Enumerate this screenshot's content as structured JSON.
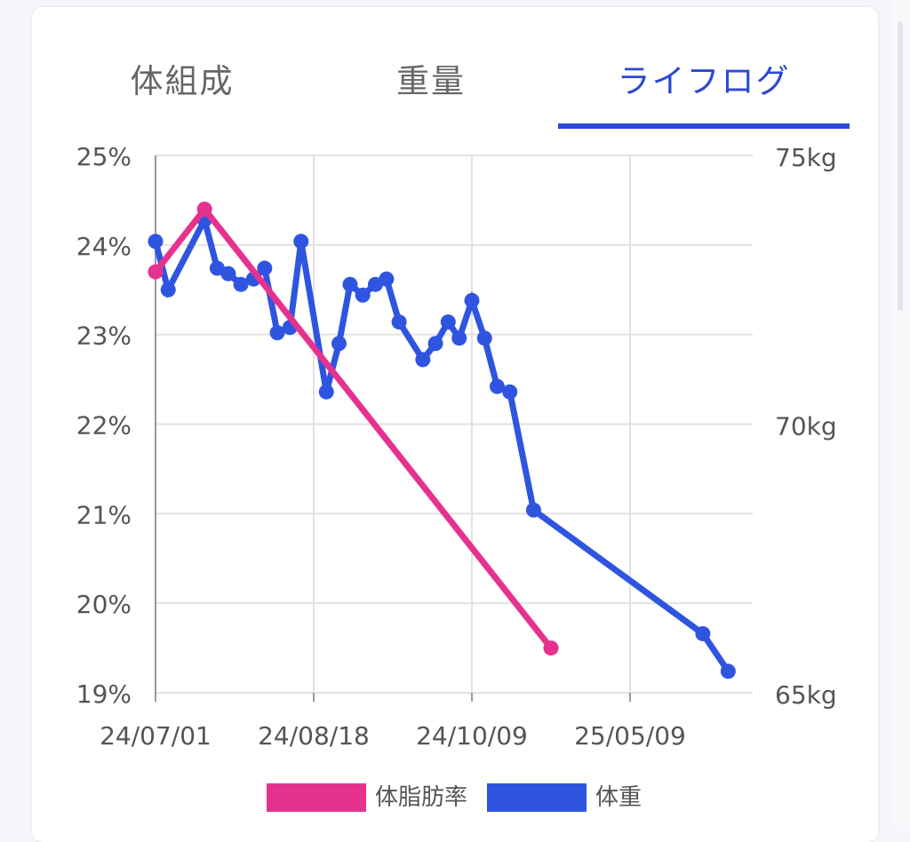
{
  "tabs": [
    {
      "label": "体組成",
      "active": false
    },
    {
      "label": "重量",
      "active": false
    },
    {
      "label": "ライフログ",
      "active": true
    }
  ],
  "colors": {
    "accent": "#2b48d6",
    "body_fat": "#e6328f",
    "weight": "#2f55e0",
    "grid": "#e2e2e2",
    "tab_text": "#666666"
  },
  "chart_data": {
    "type": "line",
    "x_ticks": [
      "24/07/01",
      "24/08/18",
      "24/10/09",
      "25/05/09"
    ],
    "y_left": {
      "ticks": [
        "25%",
        "24%",
        "23%",
        "22%",
        "21%",
        "20%",
        "19%"
      ],
      "range": [
        19,
        25
      ],
      "unit": "%"
    },
    "y_right": {
      "ticks": [
        "75kg",
        "70kg",
        "65kg"
      ],
      "range": [
        65,
        75
      ],
      "unit": "kg"
    },
    "grid": true,
    "legend_position": "bottom",
    "series": [
      {
        "name": "体脂肪率",
        "axis": "left",
        "x_index": [
          0,
          0.31,
          2.5
        ],
        "values": [
          23.7,
          24.4,
          19.5
        ]
      },
      {
        "name": "体重",
        "axis": "right",
        "x_index": [
          0,
          0.08,
          0.31,
          0.39,
          0.46,
          0.54,
          0.62,
          0.69,
          0.77,
          0.85,
          0.92,
          1.08,
          1.16,
          1.23,
          1.31,
          1.39,
          1.46,
          1.54,
          1.69,
          1.77,
          1.85,
          1.92,
          2.0,
          2.08,
          2.16,
          2.24,
          2.39,
          3.46,
          3.62
        ],
        "values": [
          73.4,
          72.5,
          73.8,
          72.9,
          72.8,
          72.6,
          72.7,
          72.9,
          71.7,
          71.8,
          73.4,
          70.6,
          71.5,
          72.6,
          72.4,
          72.6,
          72.7,
          71.9,
          71.2,
          71.5,
          71.9,
          71.6,
          72.3,
          71.6,
          70.7,
          70.6,
          68.4,
          66.1,
          65.4
        ]
      }
    ]
  }
}
